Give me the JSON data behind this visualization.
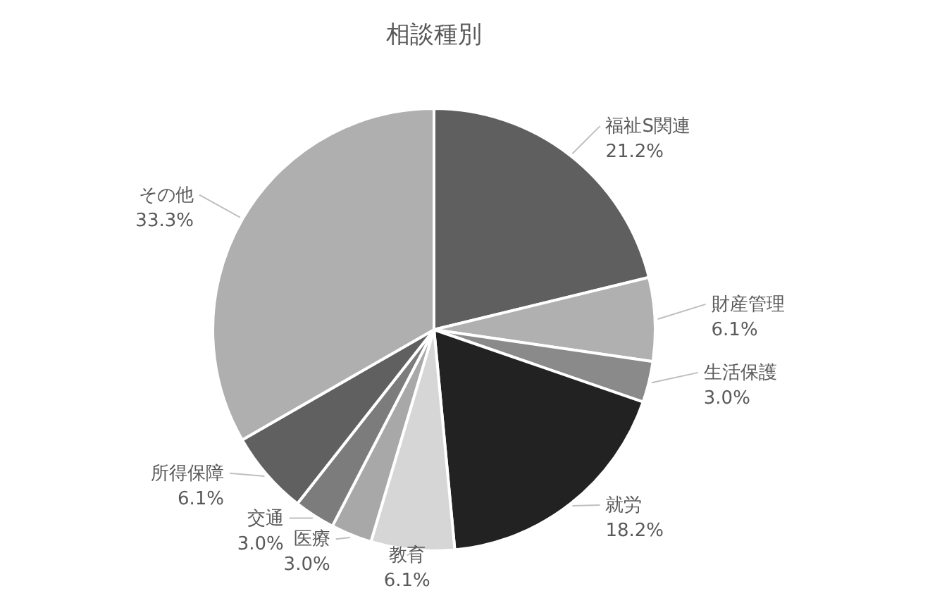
{
  "chart_data": {
    "type": "pie",
    "title": "相談種別",
    "categories": [
      "福祉S関連",
      "財産管理",
      "生活保護",
      "就労",
      "教育",
      "医療",
      "交通",
      "所得保障",
      "その他"
    ],
    "values": [
      21.2,
      6.1,
      3.0,
      18.2,
      6.1,
      3.0,
      3.0,
      6.1,
      33.3
    ],
    "colors": [
      "#5f5f5f",
      "#b0b0b0",
      "#8a8a8a",
      "#222222",
      "#d6d6d6",
      "#a8a8a8",
      "#7c7c7c",
      "#606060",
      "#afafaf"
    ],
    "value_labels": [
      "21.2%",
      "6.1%",
      "3.0%",
      "18.2%",
      "6.1%",
      "3.0%",
      "3.0%",
      "6.1%",
      "33.3%"
    ]
  }
}
